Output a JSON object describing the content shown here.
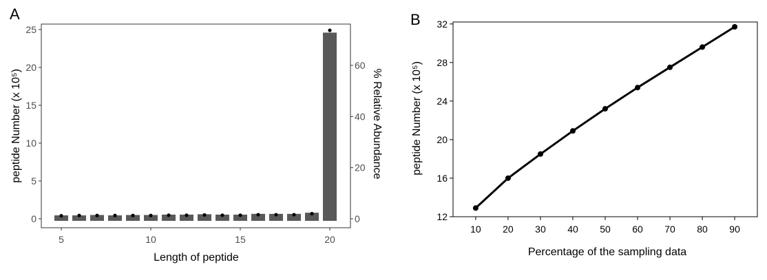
{
  "chart_data": [
    {
      "panel": "A",
      "type": "bar",
      "xlabel": "Length of peptide",
      "ylabel": "peptide Number (x 10⁵)",
      "y2label": "% Relative Abundance",
      "x": [
        5,
        6,
        7,
        8,
        9,
        10,
        11,
        12,
        13,
        14,
        15,
        16,
        17,
        18,
        19,
        20
      ],
      "xticks": [
        5,
        10,
        15,
        20
      ],
      "values": [
        0.45,
        0.45,
        0.5,
        0.45,
        0.5,
        0.5,
        0.55,
        0.55,
        0.6,
        0.55,
        0.55,
        0.65,
        0.65,
        0.65,
        0.8,
        24.6
      ],
      "points_secondary": [
        1.2,
        1.3,
        1.3,
        1.3,
        1.3,
        1.3,
        1.4,
        1.4,
        1.5,
        1.4,
        1.4,
        1.6,
        1.6,
        1.6,
        2.0,
        73.7
      ],
      "ylim": [
        0,
        26
      ],
      "yticks": [
        0,
        5,
        10,
        15,
        20,
        25
      ],
      "y2lim": [
        0,
        78
      ],
      "y2ticks": [
        0,
        20,
        40,
        60
      ],
      "colors": {
        "bar": "#595959",
        "point": "#000000",
        "axis": "#333333"
      },
      "grid": false
    },
    {
      "panel": "B",
      "type": "line",
      "xlabel": "Percentage of the sampling data",
      "ylabel": "peptide Number (x 10⁵)",
      "x": [
        10,
        20,
        30,
        40,
        50,
        60,
        70,
        80,
        90
      ],
      "values": [
        12.9,
        16.0,
        18.5,
        20.9,
        23.2,
        25.4,
        27.5,
        29.6,
        31.7
      ],
      "xlim": [
        3,
        97
      ],
      "ylim": [
        12,
        32.2
      ],
      "yticks": [
        12,
        16,
        20,
        24,
        28,
        32
      ],
      "colors": {
        "line": "#000000",
        "point": "#000000"
      },
      "grid": false
    }
  ]
}
